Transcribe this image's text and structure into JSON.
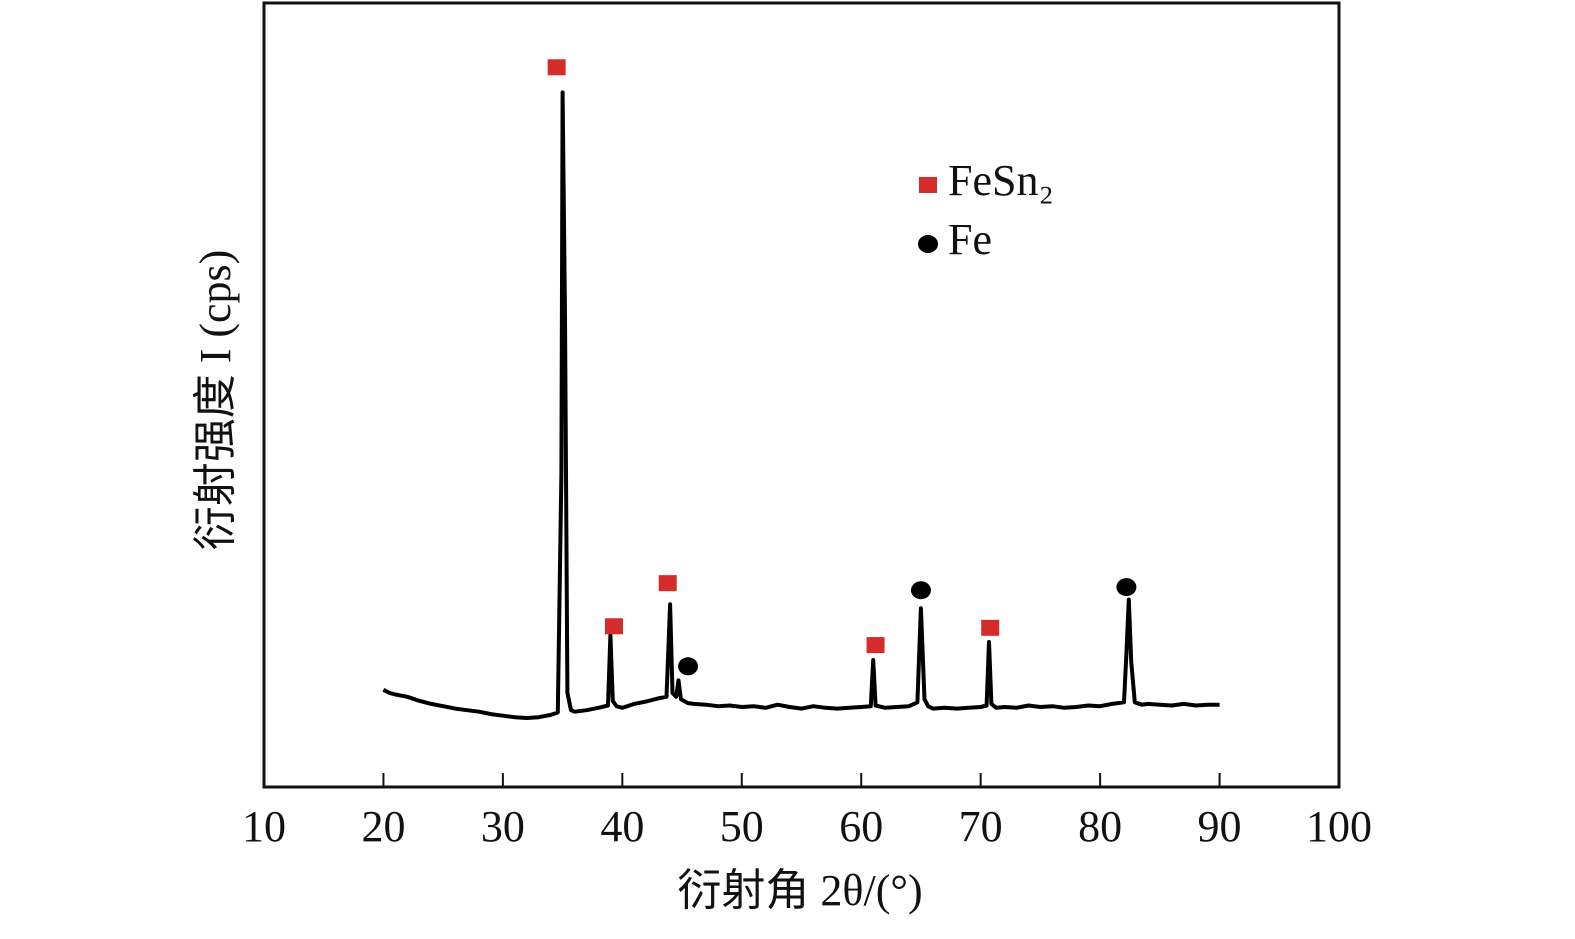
{
  "chart_data": {
    "type": "line",
    "x_label": "衍射角 2θ/(°)",
    "y_label": "衍射强度 I (cps)",
    "xlim": [
      10,
      100
    ],
    "xticks": [
      10,
      20,
      30,
      40,
      50,
      60,
      70,
      80,
      90,
      100
    ],
    "ylim": [
      0,
      100
    ],
    "color": "#000000",
    "x": [
      20,
      20.5,
      21,
      22,
      23,
      24,
      25,
      26,
      27,
      28,
      29,
      30,
      31,
      32,
      33,
      34,
      34.6,
      34.9,
      35.0,
      35.2,
      35.4,
      35.7,
      36,
      37,
      38,
      38.8,
      39.0,
      39.2,
      39.5,
      40,
      41,
      42,
      43,
      43.7,
      44.0,
      44.2,
      44.5,
      44.7,
      44.9,
      45.5,
      46,
      47,
      48,
      49,
      50,
      51,
      52,
      53,
      54,
      55,
      56,
      57,
      58,
      59,
      60,
      60.8,
      61.0,
      61.2,
      62,
      63,
      64,
      64.7,
      65.0,
      65.3,
      65.6,
      66,
      67,
      68,
      69,
      70,
      70.5,
      70.7,
      70.9,
      71.3,
      72,
      73,
      74,
      75,
      76,
      77,
      78,
      79,
      80,
      81,
      82,
      82.2,
      82.4,
      82.6,
      82.9,
      83.5,
      84,
      85,
      86,
      87,
      88,
      89,
      90
    ],
    "values": [
      12.4,
      12.0,
      11.8,
      11.5,
      11.0,
      10.6,
      10.3,
      10.0,
      9.8,
      9.6,
      9.3,
      9.1,
      8.9,
      8.8,
      8.9,
      9.2,
      9.5,
      40,
      88.6,
      60,
      12,
      9.8,
      9.6,
      9.8,
      10.1,
      10.4,
      19.4,
      11,
      10.3,
      10.1,
      10.6,
      10.9,
      11.3,
      11.5,
      23.3,
      12,
      11.5,
      13.6,
      11.2,
      10.7,
      10.6,
      10.5,
      10.3,
      10.4,
      10.2,
      10.3,
      10.1,
      10.5,
      10.2,
      10.0,
      10.3,
      10.1,
      10.0,
      10.1,
      10.2,
      10.3,
      16.2,
      10.4,
      10.1,
      10.2,
      10.3,
      10.8,
      22.8,
      11.2,
      10.3,
      10.0,
      10.1,
      10.0,
      10.1,
      10.2,
      10.4,
      18.5,
      10.6,
      10.1,
      10.2,
      10.1,
      10.4,
      10.2,
      10.3,
      10.1,
      10.2,
      10.4,
      10.3,
      10.6,
      10.8,
      17,
      23.9,
      16,
      10.8,
      10.5,
      10.6,
      10.5,
      10.4,
      10.6,
      10.4,
      10.5,
      10.5
    ],
    "phases": [
      {
        "name": "FeSn₂",
        "color": "#d42b2b",
        "marker": "square",
        "x": [
          34.5,
          39.3,
          43.8,
          61.2,
          70.8
        ],
        "values": [
          91.8,
          20.5,
          26,
          18.1,
          20.3
        ]
      },
      {
        "name": "Fe",
        "color": "#000000",
        "marker": "circle",
        "x": [
          45.5,
          65,
          82.2
        ],
        "values": [
          15.4,
          25.1,
          25.5
        ]
      }
    ]
  }
}
